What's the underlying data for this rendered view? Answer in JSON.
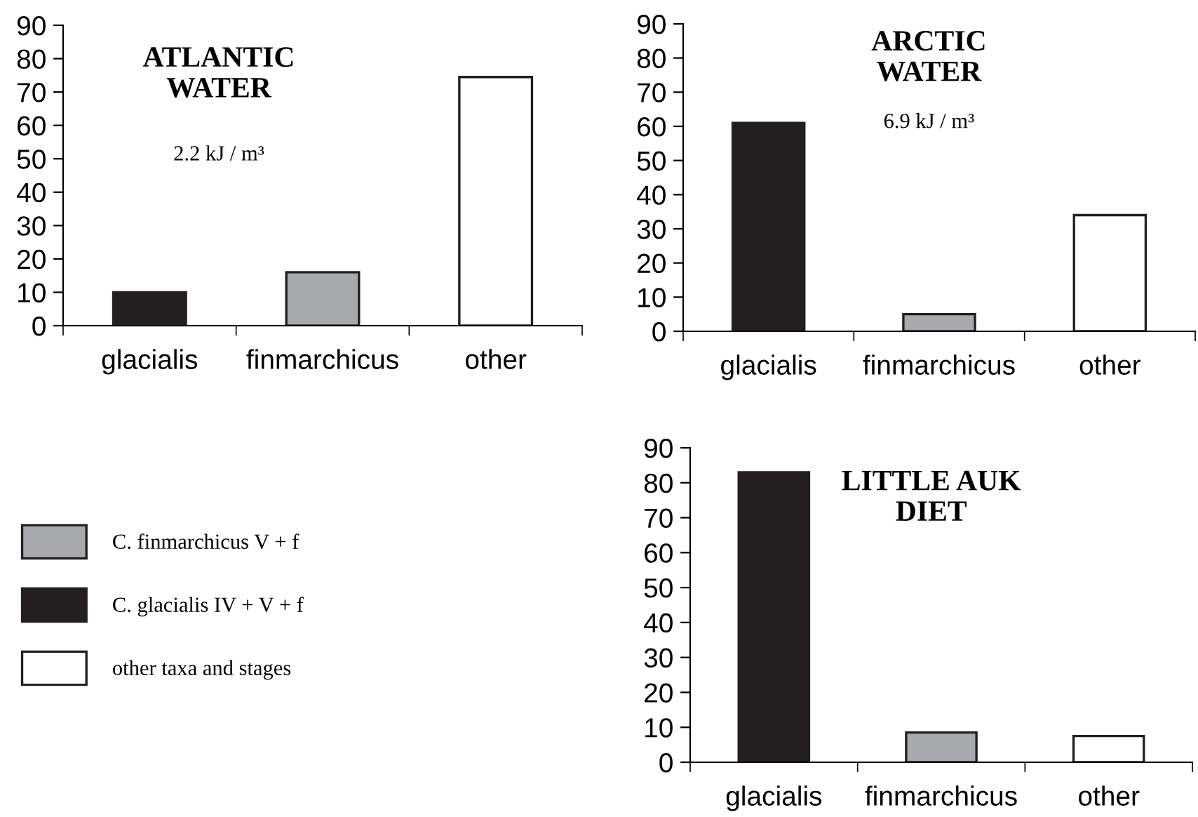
{
  "chart_data": [
    {
      "type": "bar",
      "title": "ATLANTIC\nWATER",
      "subtitle": "2.2 kJ / m³",
      "categories": [
        "glacialis",
        "finmarchicus",
        "other"
      ],
      "ylim": [
        0,
        90
      ],
      "yticks": [
        0,
        10,
        20,
        30,
        40,
        50,
        60,
        70,
        80,
        90
      ],
      "grid": false,
      "legend": false,
      "series": [
        {
          "color": "#231f20",
          "values": [
            10,
            null,
            null
          ]
        },
        {
          "color": "#a7a9ac",
          "values": [
            null,
            16,
            null
          ]
        },
        {
          "color": "#ffffff",
          "values": [
            null,
            null,
            74.5
          ]
        }
      ]
    },
    {
      "type": "bar",
      "title": "ARCTIC\nWATER",
      "subtitle": "6.9 kJ / m³",
      "categories": [
        "glacialis",
        "finmarchicus",
        "other"
      ],
      "ylim": [
        0,
        90
      ],
      "yticks": [
        0,
        10,
        20,
        30,
        40,
        50,
        60,
        70,
        80,
        90
      ],
      "grid": false,
      "legend": false,
      "series": [
        {
          "color": "#231f20",
          "values": [
            61,
            null,
            null
          ]
        },
        {
          "color": "#a7a9ac",
          "values": [
            null,
            5,
            null
          ]
        },
        {
          "color": "#ffffff",
          "values": [
            null,
            null,
            34
          ]
        }
      ]
    },
    {
      "type": "bar",
      "title": "LITTLE AUK\nDIET",
      "categories": [
        "glacialis",
        "finmarchicus",
        "other"
      ],
      "ylim": [
        0,
        90
      ],
      "yticks": [
        0,
        10,
        20,
        30,
        40,
        50,
        60,
        70,
        80,
        90
      ],
      "grid": false,
      "legend": "left",
      "series": [
        {
          "name": "C. glacialis IV + V + f",
          "color": "#231f20",
          "values": [
            83,
            null,
            null
          ]
        },
        {
          "name": "C. finmarchicus V + f",
          "color": "#a7a9ac",
          "values": [
            null,
            8.5,
            null
          ]
        },
        {
          "name": "other taxa and stages",
          "color": "#ffffff",
          "values": [
            null,
            null,
            7.5
          ]
        }
      ]
    }
  ]
}
